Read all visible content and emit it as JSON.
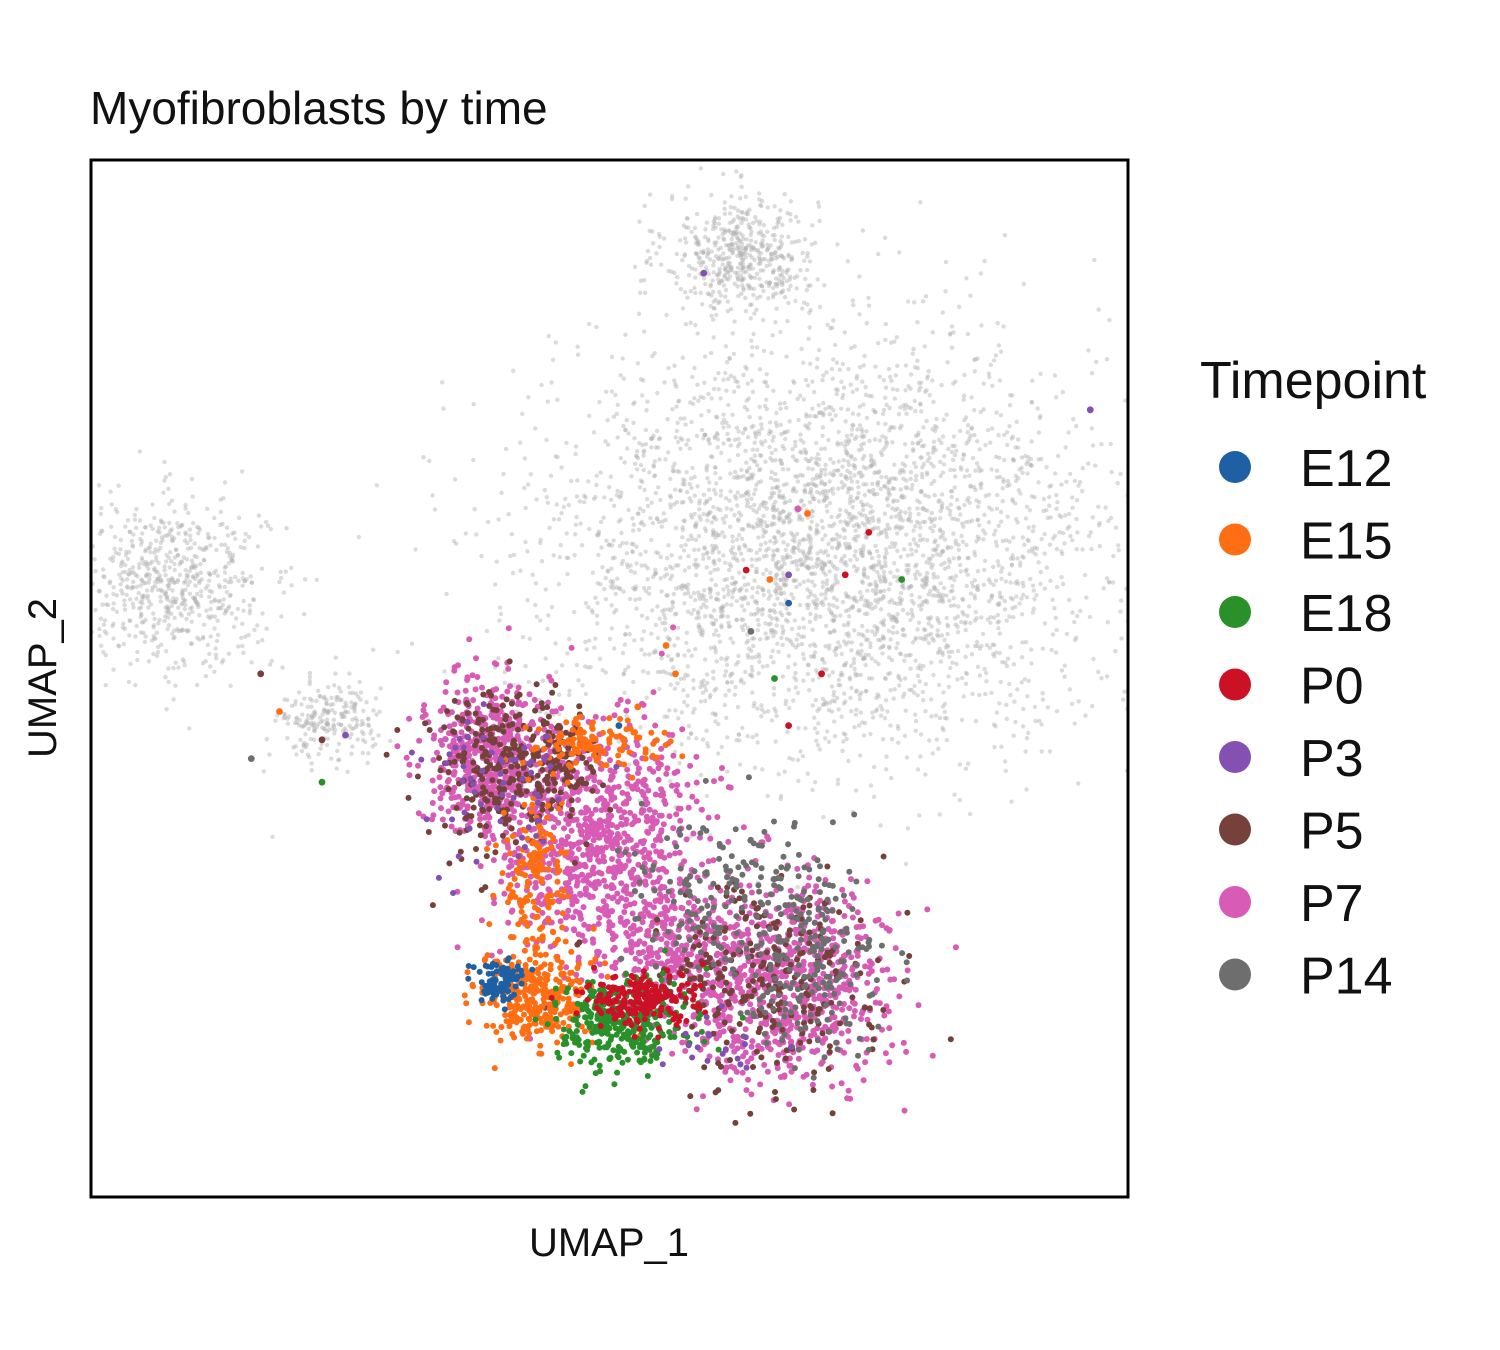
{
  "chart_data": {
    "type": "scatter",
    "title": "Myofibroblasts by time",
    "xlabel": "UMAP_1",
    "ylabel": "UMAP_2",
    "xlim": [
      -10,
      12
    ],
    "ylim": [
      -10,
      12
    ],
    "grid": false,
    "ticks": false,
    "legend": {
      "title": "Timepoint",
      "placement": "right",
      "entries": [
        "E12",
        "E15",
        "E18",
        "P0",
        "P3",
        "P5",
        "P7",
        "P14"
      ]
    },
    "colors": {
      "E12": "#1f5fa3",
      "E15": "#ff6e12",
      "E18": "#2a912a",
      "P0": "#cc1126",
      "P3": "#8450b2",
      "P5": "#76413a",
      "P7": "#d85bb5",
      "P14": "#6e6e6e",
      "background": "#b0b0b0"
    },
    "background_clusters": [
      {
        "center": [
          3.8,
          10.0
        ],
        "spread": [
          0.8,
          0.65
        ],
        "n": 500
      },
      {
        "center": [
          5.6,
          3.8
        ],
        "spread": [
          3.0,
          2.2
        ],
        "n": 3600
      },
      {
        "center": [
          -8.3,
          3.0
        ],
        "spread": [
          1.0,
          0.9
        ],
        "n": 650
      },
      {
        "center": [
          -4.9,
          0.1
        ],
        "spread": [
          0.55,
          0.45
        ],
        "n": 220
      }
    ],
    "series": [
      {
        "name": "P7",
        "clusters": [
          {
            "center": [
              0.7,
              -2.5
            ],
            "spread": [
              1.1,
              1.3
            ],
            "n": 900
          },
          {
            "center": [
              -1.6,
              -0.7
            ],
            "spread": [
              0.65,
              0.85
            ],
            "n": 500
          },
          {
            "center": [
              4.6,
              -5.4
            ],
            "spread": [
              1.2,
              1.0
            ],
            "n": 800
          },
          {
            "center": [
              2.2,
              -4.8
            ],
            "spread": [
              0.6,
              0.6
            ],
            "n": 200
          }
        ]
      },
      {
        "name": "P5",
        "clusters": [
          {
            "center": [
              -1.3,
              -0.9
            ],
            "spread": [
              0.8,
              0.9
            ],
            "n": 260
          },
          {
            "center": [
              4.2,
              -5.6
            ],
            "spread": [
              1.3,
              1.1
            ],
            "n": 260
          },
          {
            "center": [
              0.0,
              -0.7
            ],
            "spread": [
              0.35,
              0.5
            ],
            "n": 80
          }
        ]
      },
      {
        "name": "P14",
        "clusters": [
          {
            "center": [
              3.5,
              -3.6
            ],
            "spread": [
              1.2,
              0.9
            ],
            "n": 200
          },
          {
            "center": [
              5.2,
              -5.2
            ],
            "spread": [
              0.9,
              0.9
            ],
            "n": 150
          }
        ]
      },
      {
        "name": "E15",
        "clusters": [
          {
            "center": [
              -0.6,
              -5.8
            ],
            "spread": [
              0.6,
              0.5
            ],
            "n": 300
          },
          {
            "center": [
              -0.6,
              -3.2
            ],
            "spread": [
              0.35,
              0.9
            ],
            "n": 150
          },
          {
            "center": [
              0.5,
              -0.4
            ],
            "spread": [
              0.7,
              0.3
            ],
            "n": 120
          }
        ]
      },
      {
        "name": "E18",
        "clusters": [
          {
            "center": [
              1.2,
              -6.3
            ],
            "spread": [
              0.7,
              0.5
            ],
            "n": 320
          }
        ]
      },
      {
        "name": "P0",
        "clusters": [
          {
            "center": [
              1.6,
              -5.8
            ],
            "spread": [
              0.6,
              0.3
            ],
            "n": 200
          }
        ]
      },
      {
        "name": "E12",
        "clusters": [
          {
            "center": [
              -1.3,
              -5.4
            ],
            "spread": [
              0.28,
              0.22
            ],
            "n": 90
          }
        ]
      },
      {
        "name": "P3",
        "clusters": [
          {
            "center": [
              -1.5,
              -1.3
            ],
            "spread": [
              0.8,
              0.9
            ],
            "n": 60
          },
          {
            "center": [
              3.3,
              -6.8
            ],
            "spread": [
              0.6,
              0.3
            ],
            "n": 20
          }
        ]
      }
    ],
    "outliers": [
      {
        "name": "P3",
        "x": 11.2,
        "y": 6.7
      },
      {
        "name": "P3",
        "x": 3.0,
        "y": 9.6
      },
      {
        "name": "P3",
        "x": -4.6,
        "y": -0.2
      },
      {
        "name": "P3",
        "x": 4.8,
        "y": 3.2
      },
      {
        "name": "P5",
        "x": -6.4,
        "y": 1.1
      },
      {
        "name": "P5",
        "x": -5.1,
        "y": -0.3
      },
      {
        "name": "E15",
        "x": -6.0,
        "y": 0.3
      },
      {
        "name": "E15",
        "x": 2.2,
        "y": 1.7
      },
      {
        "name": "E15",
        "x": 1.6,
        "y": 0.4
      },
      {
        "name": "E15",
        "x": 2.4,
        "y": 1.1
      },
      {
        "name": "E15",
        "x": 5.2,
        "y": 4.5
      },
      {
        "name": "E15",
        "x": 4.4,
        "y": 3.1
      },
      {
        "name": "P0",
        "x": 3.9,
        "y": 3.3
      },
      {
        "name": "P0",
        "x": 6.0,
        "y": 3.2
      },
      {
        "name": "P0",
        "x": 5.5,
        "y": 1.1
      },
      {
        "name": "P0",
        "x": 6.5,
        "y": 4.1
      },
      {
        "name": "P0",
        "x": 4.8,
        "y": 0.0
      },
      {
        "name": "E18",
        "x": 7.2,
        "y": 3.1
      },
      {
        "name": "E18",
        "x": 4.5,
        "y": 1.0
      },
      {
        "name": "E18",
        "x": -5.1,
        "y": -1.2
      },
      {
        "name": "E12",
        "x": 4.8,
        "y": 2.6
      },
      {
        "name": "E12",
        "x": 1.2,
        "y": 0.0
      },
      {
        "name": "P14",
        "x": -6.6,
        "y": -0.7
      },
      {
        "name": "P14",
        "x": 4.0,
        "y": 2.0
      },
      {
        "name": "P7",
        "x": 5.0,
        "y": 4.6
      }
    ]
  }
}
